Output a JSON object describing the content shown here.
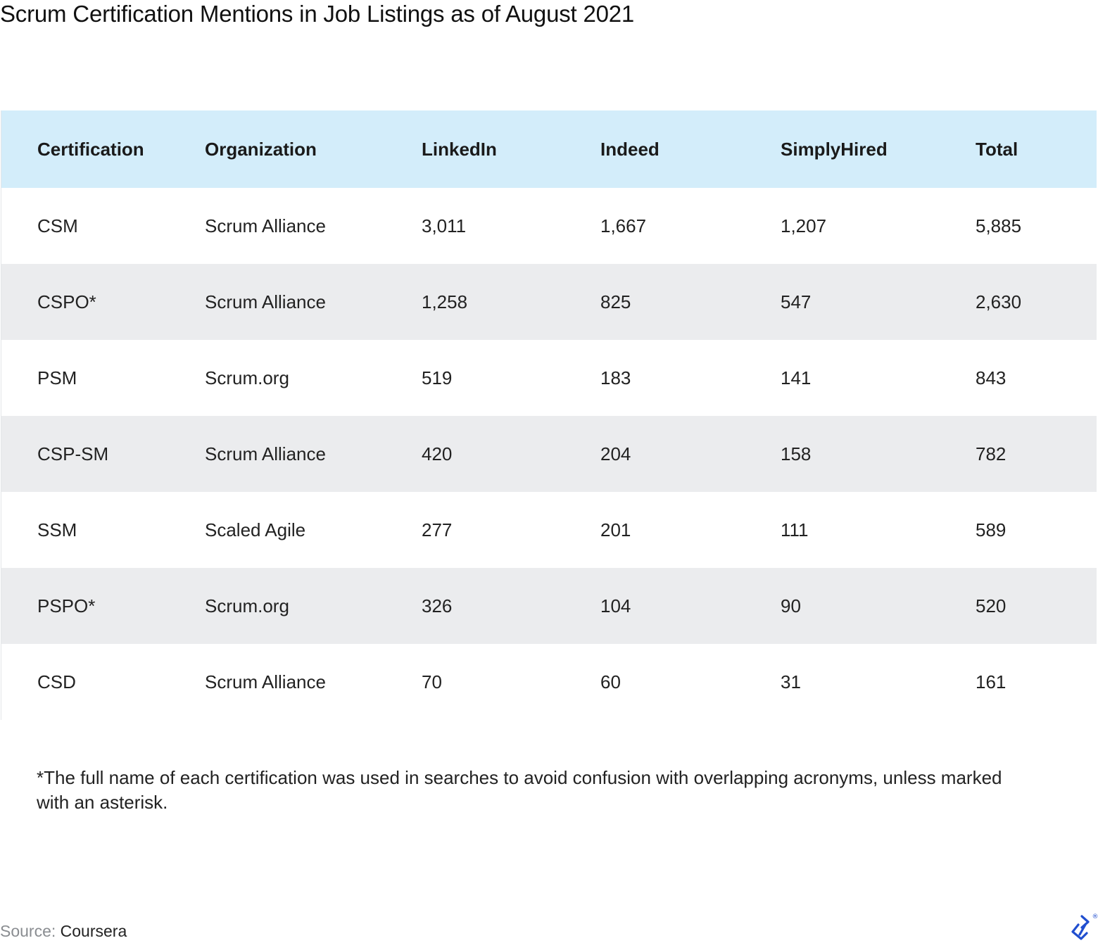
{
  "title": "Scrum Certification Mentions in Job Listings as of August 2021",
  "chart_data": {
    "type": "table",
    "title": "Scrum Certification Mentions in Job Listings as of August 2021",
    "columns": [
      "Certification",
      "Organization",
      "LinkedIn",
      "Indeed",
      "SimplyHired",
      "Total"
    ],
    "rows": [
      [
        "CSM",
        "Scrum Alliance",
        "3,011",
        "1,667",
        "1,207",
        "5,885"
      ],
      [
        "CSPO*",
        "Scrum Alliance",
        "1,258",
        "825",
        "547",
        "2,630"
      ],
      [
        "PSM",
        "Scrum.org",
        "519",
        "183",
        "141",
        "843"
      ],
      [
        "CSP-SM",
        "Scrum Alliance",
        "420",
        "204",
        "158",
        "782"
      ],
      [
        "SSM",
        "Scaled Agile",
        "277",
        "201",
        "111",
        "589"
      ],
      [
        "PSPO*",
        "Scrum.org",
        "326",
        "104",
        "90",
        "520"
      ],
      [
        "CSD",
        "Scrum Alliance",
        "70",
        "60",
        "31",
        "161"
      ]
    ],
    "footnote": "*The full name of each certification was used in searches to avoid confusion with overlapping acronyms, unless marked with an asterisk.",
    "header_color": "#d3edfa",
    "stripe_color": "#ebecee"
  },
  "source": {
    "label": "Source:",
    "value": "Coursera"
  },
  "logo": {
    "icon": "toptal-logo-icon",
    "color": "#204ecf",
    "mark": "®"
  }
}
